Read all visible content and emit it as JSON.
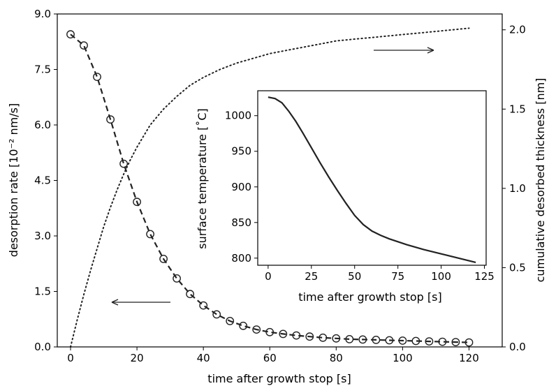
{
  "chart_data": [
    {
      "type": "line",
      "title": "",
      "xlabel": "time after growth stop [s]",
      "ylabel": "desorption rate [10⁻² nm/s]",
      "y2label": "cumulative desorbed thickness [nm]",
      "xlim": [
        -4,
        130
      ],
      "ylim": [
        0,
        9
      ],
      "y2lim": [
        0,
        2.1
      ],
      "xticks": [
        0,
        20,
        40,
        60,
        80,
        100,
        120
      ],
      "xtick_labels": [
        "0",
        "20",
        "40",
        "60",
        "80",
        "100",
        "120"
      ],
      "yticks": [
        0,
        1.5,
        3,
        4.5,
        6,
        7.5,
        9
      ],
      "ytick_labels": [
        "0.0",
        "1.5",
        "3.0",
        "4.5",
        "6.0",
        "7.5",
        "9.0"
      ],
      "y2ticks": [
        0,
        0.5,
        1,
        1.5,
        2
      ],
      "y2tick_labels": [
        "0.0",
        "0.5",
        "1.0",
        "1.5",
        "2.0"
      ],
      "grid": false,
      "series": [
        {
          "style": "circles-on-dashed",
          "axis": "left",
          "x": [
            0,
            4,
            8,
            12,
            16,
            20,
            24,
            28,
            32,
            36,
            40,
            44,
            48,
            52,
            56,
            60,
            64,
            68,
            72,
            76,
            80,
            84,
            88,
            92,
            96,
            100,
            104,
            108,
            112,
            116,
            120
          ],
          "y": [
            8.45,
            8.15,
            7.3,
            6.15,
            4.95,
            3.92,
            3.05,
            2.38,
            1.85,
            1.43,
            1.12,
            0.88,
            0.7,
            0.57,
            0.47,
            0.4,
            0.35,
            0.31,
            0.28,
            0.25,
            0.23,
            0.21,
            0.2,
            0.19,
            0.18,
            0.17,
            0.16,
            0.15,
            0.14,
            0.13,
            0.12
          ]
        },
        {
          "style": "dotted",
          "axis": "right",
          "x": [
            0,
            2,
            4,
            6,
            8,
            10,
            12,
            14,
            16,
            18,
            20,
            24,
            28,
            32,
            36,
            40,
            45,
            50,
            55,
            60,
            65,
            70,
            75,
            80,
            85,
            90,
            95,
            100,
            105,
            110,
            115,
            120
          ],
          "y": [
            0,
            0.17,
            0.33,
            0.48,
            0.62,
            0.76,
            0.88,
            0.99,
            1.09,
            1.18,
            1.26,
            1.4,
            1.5,
            1.58,
            1.65,
            1.7,
            1.75,
            1.79,
            1.82,
            1.85,
            1.87,
            1.89,
            1.91,
            1.93,
            1.94,
            1.95,
            1.96,
            1.97,
            1.98,
            1.99,
            2.0,
            2.01
          ]
        }
      ],
      "annotations": [
        {
          "kind": "arrow",
          "direction": "left",
          "points_to": "left axis"
        },
        {
          "kind": "arrow",
          "direction": "right",
          "points_to": "right axis"
        }
      ]
    },
    {
      "type": "line",
      "role": "inset",
      "title": "",
      "xlabel": "time after growth stop [s]",
      "ylabel": "surface temperature [˚C]",
      "xlim": [
        -6,
        126
      ],
      "ylim": [
        790,
        1035
      ],
      "xticks": [
        0,
        25,
        50,
        75,
        100,
        125
      ],
      "xtick_labels": [
        "0",
        "25",
        "50",
        "75",
        "100",
        "125"
      ],
      "yticks": [
        800,
        850,
        900,
        950,
        1000
      ],
      "ytick_labels": [
        "800",
        "850",
        "900",
        "950",
        "1000"
      ],
      "grid": false,
      "series": [
        {
          "style": "solid",
          "x": [
            0,
            4,
            8,
            12,
            16,
            20,
            25,
            30,
            35,
            40,
            45,
            50,
            55,
            60,
            65,
            70,
            75,
            80,
            90,
            100,
            110,
            120
          ],
          "y": [
            1026,
            1024,
            1018,
            1006,
            992,
            976,
            955,
            934,
            914,
            895,
            877,
            860,
            847,
            838,
            832,
            827,
            823,
            819,
            812,
            806,
            800,
            794
          ]
        }
      ]
    }
  ]
}
